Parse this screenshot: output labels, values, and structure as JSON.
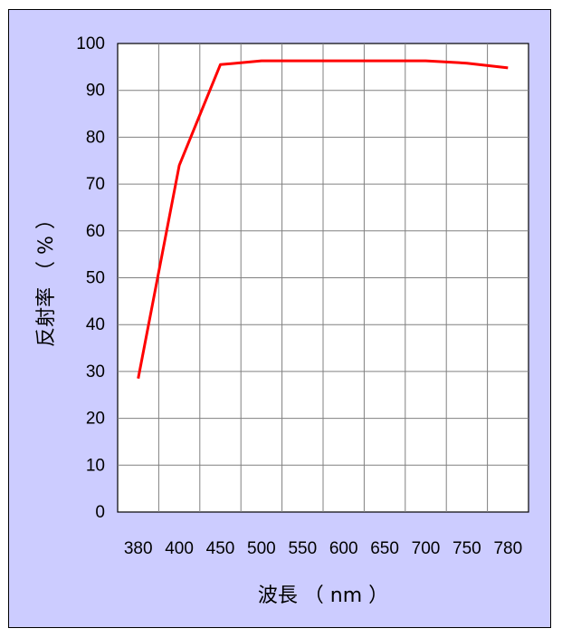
{
  "chart_data": {
    "type": "line",
    "xlabel": "波長 （ nm ）",
    "ylabel": "反射率 （ % ）",
    "x_tick_labels": [
      "380",
      "400",
      "450",
      "500",
      "550",
      "600",
      "650",
      "700",
      "750",
      "780"
    ],
    "y_tick_labels": [
      "0",
      "10",
      "20",
      "30",
      "40",
      "50",
      "60",
      "70",
      "80",
      "90",
      "100"
    ],
    "ylim": [
      0,
      100
    ],
    "grid": true,
    "series": [
      {
        "color": "#ff0000",
        "values": [
          28.5,
          74,
          95.5,
          96.3,
          96.3,
          96.3,
          96.3,
          96.3,
          95.8,
          94.8
        ]
      }
    ],
    "colors": {
      "background": "#ccccff",
      "plot_area": "#ffffff",
      "grid": "#808080",
      "line": "#ff0000"
    }
  }
}
